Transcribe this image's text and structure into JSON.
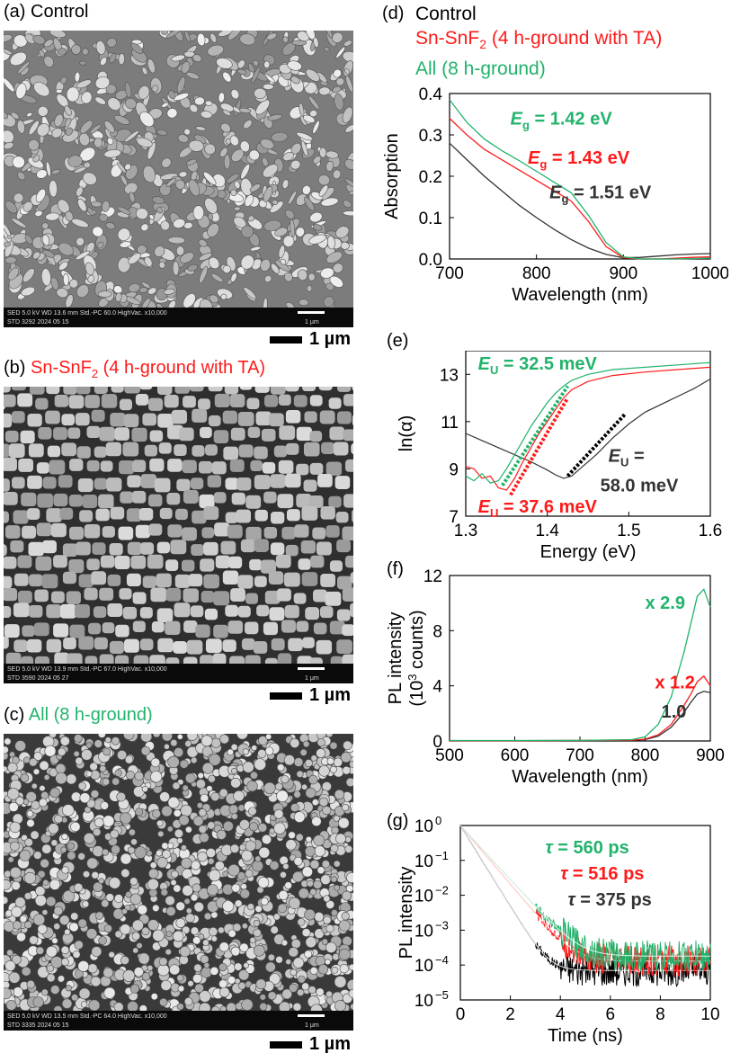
{
  "colors": {
    "control": "#333333",
    "snsnf2": "#ff1a1a",
    "all": "#22b36b",
    "sem_bg": "#777777"
  },
  "panels": {
    "a": {
      "letter": "(a)",
      "title": "Control"
    },
    "b": {
      "letter": "(b)",
      "title_pre": "Sn-SnF",
      "title_sub": "2",
      "title_post": " (4 h-ground with TA)"
    },
    "c": {
      "letter": "(c)",
      "title": "All (8 h-ground)"
    },
    "d": {
      "letter": "(d)"
    },
    "e": {
      "letter": "(e)"
    },
    "f": {
      "letter": "(f)"
    },
    "g": {
      "letter": "(g)"
    }
  },
  "sem_images": [
    {
      "id": "a",
      "databar_line1": "SED    5.0 kV    WD 13.6 mm    Std.-PC 60.0    HighVac.    x10,000",
      "databar_line2": "STD    3292    2024 05 15",
      "scale_text": "1 μm",
      "scale_label": "1 µm"
    },
    {
      "id": "b",
      "databar_line1": "SED    5.0 kV    WD 13.9 mm    Std.-PC 67.0    HighVac.    x10,000",
      "databar_line2": "STD    3590    2024 05 27",
      "scale_text": "1 μm",
      "scale_label": "1 µm"
    },
    {
      "id": "c",
      "databar_line1": "SED    5.0 kV    WD 13.5 mm    Std.-PC 64.0    HighVac.    x10,000",
      "databar_line2": "STD    3335    2024 05 15",
      "scale_text": "1 μm",
      "scale_label": "1 µm"
    }
  ],
  "legend": {
    "control": "Control",
    "snsnf2_pre": "Sn-SnF",
    "snsnf2_sub": "2",
    "snsnf2_post": " (4 h-ground with TA)",
    "all": "All (8 h-ground)"
  },
  "chart_data": [
    {
      "id": "d",
      "type": "line",
      "xlabel": "Wavelength (nm)",
      "ylabel": "Absorption",
      "xlim": [
        700,
        1000
      ],
      "ylim": [
        0,
        0.4
      ],
      "xticks": [
        700,
        800,
        900,
        1000
      ],
      "yticks": [
        0.0,
        0.1,
        0.2,
        0.3,
        0.4
      ],
      "ytick_labels": [
        "0.0",
        "0.1",
        "0.2",
        "0.3",
        "0.4"
      ],
      "series": [
        {
          "key": "control",
          "color": "#333333",
          "x": [
            700,
            720,
            740,
            760,
            780,
            800,
            820,
            840,
            860,
            880,
            900,
            920,
            940,
            960,
            980,
            1000
          ],
          "y": [
            0.28,
            0.24,
            0.2,
            0.165,
            0.13,
            0.1,
            0.072,
            0.047,
            0.026,
            0.011,
            0.003,
            0.004,
            0.007,
            0.01,
            0.012,
            0.013
          ]
        },
        {
          "key": "snsnf2",
          "color": "#ff1a1a",
          "x": [
            700,
            720,
            740,
            760,
            780,
            800,
            820,
            840,
            860,
            880,
            900,
            920,
            940,
            960,
            980,
            1000
          ],
          "y": [
            0.34,
            0.3,
            0.265,
            0.24,
            0.215,
            0.19,
            0.165,
            0.14,
            0.09,
            0.03,
            0.003,
            0.0,
            0.0,
            0.002,
            0.004,
            0.005
          ]
        },
        {
          "key": "all",
          "color": "#22b36b",
          "x": [
            700,
            720,
            740,
            760,
            780,
            800,
            820,
            840,
            860,
            880,
            900,
            920,
            940,
            960,
            980,
            1000
          ],
          "y": [
            0.385,
            0.33,
            0.29,
            0.262,
            0.238,
            0.212,
            0.186,
            0.16,
            0.105,
            0.04,
            0.005,
            0.0,
            0.0,
            0.0,
            0.001,
            0.002
          ]
        }
      ],
      "annotations": [
        {
          "key": "all",
          "sym": "E",
          "sub": "g",
          "text": " = 1.42 eV",
          "x": 770,
          "y": 0.325
        },
        {
          "key": "snsnf2",
          "sym": "E",
          "sub": "g",
          "text": " = 1.43 eV",
          "x": 790,
          "y": 0.23
        },
        {
          "key": "control",
          "sym": "E",
          "sub": "g",
          "text": " = 1.51 eV",
          "x": 815,
          "y": 0.147
        }
      ]
    },
    {
      "id": "e",
      "type": "line",
      "xlabel": "Energy (eV)",
      "ylabel": "ln(α)",
      "xlim": [
        1.3,
        1.6
      ],
      "ylim": [
        7,
        14
      ],
      "xticks": [
        1.3,
        1.4,
        1.5,
        1.6
      ],
      "yticks": [
        7,
        9,
        11,
        13
      ],
      "xtick_labels": [
        "1.3",
        "1.4",
        "1.5",
        "1.6"
      ],
      "series": [
        {
          "key": "control",
          "color": "#333333",
          "x": [
            1.3,
            1.32,
            1.34,
            1.36,
            1.38,
            1.4,
            1.41,
            1.42,
            1.43,
            1.44,
            1.46,
            1.48,
            1.5,
            1.52,
            1.55,
            1.58,
            1.6
          ],
          "y": [
            10.5,
            10.2,
            9.9,
            9.6,
            9.3,
            8.95,
            8.75,
            8.6,
            8.7,
            9.0,
            9.6,
            10.3,
            10.9,
            11.4,
            11.9,
            12.4,
            12.8
          ]
        },
        {
          "key": "snsnf2",
          "color": "#ff1a1a",
          "x": [
            1.3,
            1.31,
            1.32,
            1.33,
            1.34,
            1.35,
            1.36,
            1.37,
            1.38,
            1.39,
            1.4,
            1.41,
            1.42,
            1.43,
            1.45,
            1.48,
            1.52,
            1.56,
            1.6
          ],
          "y": [
            9.1,
            9.0,
            8.6,
            8.7,
            8.2,
            8.1,
            8.6,
            9.3,
            9.9,
            10.5,
            11.0,
            11.5,
            12.0,
            12.35,
            12.7,
            12.95,
            13.1,
            13.2,
            13.3
          ]
        },
        {
          "key": "all",
          "color": "#22b36b",
          "x": [
            1.3,
            1.31,
            1.32,
            1.33,
            1.34,
            1.35,
            1.36,
            1.37,
            1.38,
            1.39,
            1.4,
            1.41,
            1.42,
            1.43,
            1.45,
            1.48,
            1.52,
            1.56,
            1.6
          ],
          "y": [
            8.7,
            8.5,
            8.8,
            8.4,
            8.5,
            9.0,
            9.6,
            10.2,
            10.8,
            11.3,
            11.8,
            12.2,
            12.5,
            12.75,
            13.0,
            13.2,
            13.3,
            13.4,
            13.5
          ]
        }
      ],
      "fits": [
        {
          "key": "all",
          "color": "#22b36b",
          "x": [
            1.345,
            1.425
          ],
          "y": [
            8.3,
            12.5
          ]
        },
        {
          "key": "snsnf2",
          "color": "#ff1a1a",
          "x": [
            1.355,
            1.425
          ],
          "y": [
            7.9,
            12.0
          ]
        },
        {
          "key": "control",
          "color": "#000000",
          "x": [
            1.425,
            1.495
          ],
          "y": [
            8.7,
            11.3
          ]
        }
      ],
      "annotations": [
        {
          "key": "all",
          "sym": "E",
          "sub": "U",
          "text": " = 32.5 meV",
          "x": 1.315,
          "y": 13.2
        },
        {
          "key": "snsnf2",
          "sym": "E",
          "sub": "U",
          "text": " = 37.6 meV",
          "x": 1.315,
          "y": 7.15
        },
        {
          "key": "control",
          "sym": "E",
          "sub": "U",
          "text": " =",
          "x": 1.475,
          "y": 9.3
        },
        {
          "key": "control",
          "text": "58.0 meV",
          "x": 1.465,
          "y": 8.05
        }
      ]
    },
    {
      "id": "f",
      "type": "line",
      "xlabel": "Wavelength (nm)",
      "ylabel_line1": "PL intensity",
      "ylabel_line2_pre": "(10",
      "ylabel_line2_sup": "3",
      "ylabel_line2_post": " counts)",
      "xlim": [
        500,
        900
      ],
      "ylim": [
        0,
        12
      ],
      "xticks": [
        500,
        600,
        700,
        800,
        900
      ],
      "yticks": [
        0,
        4,
        8,
        12
      ],
      "series": [
        {
          "key": "control",
          "color": "#333333",
          "x": [
            500,
            600,
            700,
            780,
            800,
            820,
            840,
            860,
            870,
            880,
            890,
            900
          ],
          "y": [
            0.02,
            0.02,
            0.03,
            0.05,
            0.1,
            0.35,
            1.0,
            2.1,
            2.8,
            3.4,
            3.6,
            3.5
          ]
        },
        {
          "key": "snsnf2",
          "color": "#ff1a1a",
          "x": [
            500,
            600,
            700,
            780,
            800,
            820,
            840,
            860,
            870,
            880,
            890,
            900
          ],
          "y": [
            0.02,
            0.02,
            0.03,
            0.06,
            0.13,
            0.45,
            1.2,
            2.6,
            3.4,
            4.3,
            4.7,
            4.0
          ]
        },
        {
          "key": "all",
          "color": "#22b36b",
          "x": [
            500,
            600,
            700,
            780,
            800,
            820,
            840,
            860,
            870,
            880,
            890,
            900
          ],
          "y": [
            0.03,
            0.03,
            0.04,
            0.1,
            0.3,
            1.2,
            3.2,
            6.5,
            8.5,
            10.5,
            11.0,
            9.7
          ]
        }
      ],
      "annotations": [
        {
          "key": "all",
          "text": "x 2.9",
          "x": 800,
          "y": 9.6
        },
        {
          "key": "snsnf2",
          "text": "x 1.2",
          "x": 815,
          "y": 3.8
        },
        {
          "key": "control",
          "text": "1.0",
          "x": 825,
          "y": 1.7
        }
      ]
    },
    {
      "id": "g",
      "type": "line",
      "xlabel": "Time (ns)",
      "ylabel": "PL intensity",
      "xlim": [
        0,
        10
      ],
      "ylim_log10": [
        -5,
        0
      ],
      "yscale": "log",
      "xticks": [
        0,
        2,
        4,
        6,
        8,
        10
      ],
      "yticks": [
        {
          "base": "10",
          "exp": "0"
        },
        {
          "base": "10",
          "exp": "−1"
        },
        {
          "base": "10",
          "exp": "−2"
        },
        {
          "base": "10",
          "exp": "−3"
        },
        {
          "base": "10",
          "exp": "−4"
        },
        {
          "base": "10",
          "exp": "−5"
        }
      ],
      "series": [
        {
          "key": "control",
          "color": "#000000",
          "tau_ps": 375,
          "floor": 7e-05,
          "t_end": 10
        },
        {
          "key": "snsnf2",
          "color": "#ff1a1a",
          "tau_ps": 516,
          "floor": 0.00013,
          "t_end": 10
        },
        {
          "key": "all",
          "color": "#22b36b",
          "tau_ps": 560,
          "floor": 0.00018,
          "t_end": 10
        }
      ],
      "annotations": [
        {
          "key": "all",
          "sym": "τ",
          "text": " = 560 ps",
          "x": 3.4,
          "y_log10": -0.8
        },
        {
          "key": "snsnf2",
          "sym": "τ",
          "text": " = 516 ps",
          "x": 4.0,
          "y_log10": -1.55
        },
        {
          "key": "control",
          "sym": "τ",
          "text": " = 375 ps",
          "x": 4.3,
          "y_log10": -2.3
        }
      ]
    }
  ]
}
